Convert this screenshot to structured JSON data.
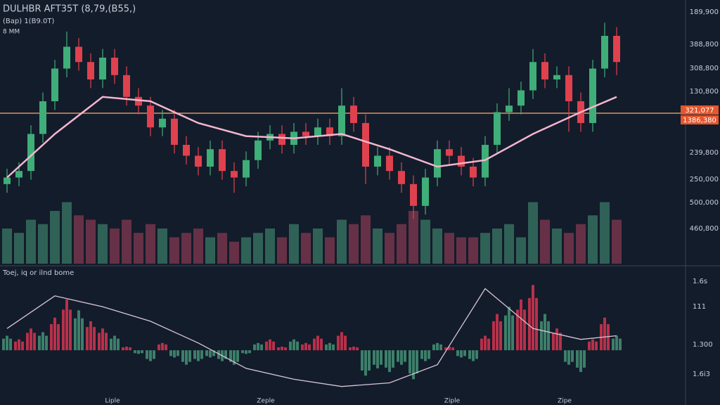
{
  "chart_data": {
    "type": "candlestick",
    "title": "DULHBR AFT35T (8,79,(B55,)",
    "subtitle": "(Bap) 1(B9.0T)",
    "note": "8 MM",
    "ylim": [
      0,
      100
    ],
    "candles": [
      [
        22,
        29,
        18,
        25
      ],
      [
        25,
        32,
        21,
        28
      ],
      [
        28,
        49,
        24,
        45
      ],
      [
        45,
        64,
        41,
        60
      ],
      [
        60,
        79,
        56,
        75
      ],
      [
        75,
        92,
        71,
        85
      ],
      [
        85,
        89,
        74,
        78
      ],
      [
        78,
        82,
        66,
        70
      ],
      [
        70,
        84,
        66,
        80
      ],
      [
        80,
        84,
        68,
        72
      ],
      [
        72,
        76,
        58,
        62
      ],
      [
        62,
        66,
        54,
        58
      ],
      [
        58,
        62,
        44,
        48
      ],
      [
        48,
        56,
        44,
        52
      ],
      [
        52,
        56,
        36,
        40
      ],
      [
        40,
        44,
        31,
        35
      ],
      [
        35,
        39,
        26,
        30
      ],
      [
        30,
        42,
        26,
        38
      ],
      [
        38,
        42,
        24,
        28
      ],
      [
        28,
        32,
        18,
        25
      ],
      [
        25,
        37,
        21,
        33
      ],
      [
        33,
        46,
        29,
        42
      ],
      [
        42,
        49,
        38,
        45
      ],
      [
        45,
        49,
        36,
        40
      ],
      [
        40,
        50,
        36,
        46
      ],
      [
        46,
        50,
        40,
        44
      ],
      [
        44,
        52,
        40,
        48
      ],
      [
        48,
        52,
        40,
        44
      ],
      [
        44,
        66,
        40,
        58
      ],
      [
        58,
        62,
        46,
        50
      ],
      [
        50,
        54,
        22,
        30
      ],
      [
        30,
        39,
        26,
        35
      ],
      [
        35,
        39,
        24,
        28
      ],
      [
        28,
        32,
        18,
        22
      ],
      [
        22,
        26,
        6,
        12
      ],
      [
        12,
        29,
        8,
        25
      ],
      [
        25,
        42,
        21,
        38
      ],
      [
        38,
        42,
        31,
        35
      ],
      [
        35,
        39,
        26,
        30
      ],
      [
        30,
        34,
        21,
        25
      ],
      [
        25,
        44,
        21,
        40
      ],
      [
        40,
        59,
        36,
        55
      ],
      [
        55,
        66,
        51,
        58
      ],
      [
        58,
        69,
        54,
        65
      ],
      [
        65,
        84,
        61,
        78
      ],
      [
        78,
        82,
        66,
        70
      ],
      [
        70,
        76,
        66,
        72
      ],
      [
        72,
        76,
        46,
        60
      ],
      [
        60,
        64,
        46,
        50
      ],
      [
        50,
        79,
        46,
        75
      ],
      [
        75,
        96,
        71,
        90
      ],
      [
        90,
        94,
        72,
        78
      ]
    ],
    "volumes": [
      40,
      35,
      50,
      45,
      60,
      70,
      55,
      50,
      45,
      40,
      50,
      35,
      45,
      40,
      30,
      35,
      40,
      30,
      35,
      25,
      30,
      35,
      40,
      30,
      45,
      35,
      40,
      30,
      50,
      45,
      55,
      40,
      35,
      45,
      60,
      50,
      40,
      35,
      30,
      30,
      35,
      40,
      45,
      30,
      70,
      50,
      40,
      35,
      45,
      55,
      70,
      50
    ],
    "ma_x": [
      0,
      4,
      8,
      12,
      16,
      20,
      24,
      28,
      32,
      36,
      40,
      44,
      48,
      51
    ],
    "ma": [
      25,
      45,
      62,
      60,
      50,
      44,
      43,
      45,
      38,
      30,
      33,
      45,
      55,
      62
    ],
    "level": 54.5,
    "price_tags": [
      "321,077",
      "1386,380"
    ],
    "y_axis_labels": [
      "189,900",
      "388,800",
      "308,800",
      "130,800",
      "239,800",
      "250,000",
      "500,000",
      "460,800"
    ],
    "indicator": {
      "label": "Toej, iq or ilnd bome",
      "ylim": [
        -60,
        100
      ],
      "histogram": [
        20,
        15,
        30,
        25,
        45,
        70,
        55,
        40,
        30,
        20,
        5,
        -5,
        -15,
        10,
        -10,
        -20,
        -15,
        -10,
        -15,
        -20,
        -5,
        10,
        15,
        5,
        15,
        10,
        20,
        10,
        25,
        5,
        -35,
        -25,
        -30,
        -20,
        -40,
        -15,
        10,
        5,
        -10,
        -15,
        20,
        50,
        60,
        70,
        90,
        50,
        30,
        -20,
        -30,
        15,
        45,
        20
      ],
      "line": [
        30,
        75,
        60,
        40,
        10,
        -25,
        -40,
        -50,
        -45,
        -20,
        85,
        30,
        15,
        20
      ],
      "axis_labels": [
        "1.6s",
        "111",
        "1.300",
        "1.6i3"
      ]
    },
    "x_labels": [
      "Liple",
      "Zeple",
      "Ziple",
      "Zipe"
    ]
  }
}
